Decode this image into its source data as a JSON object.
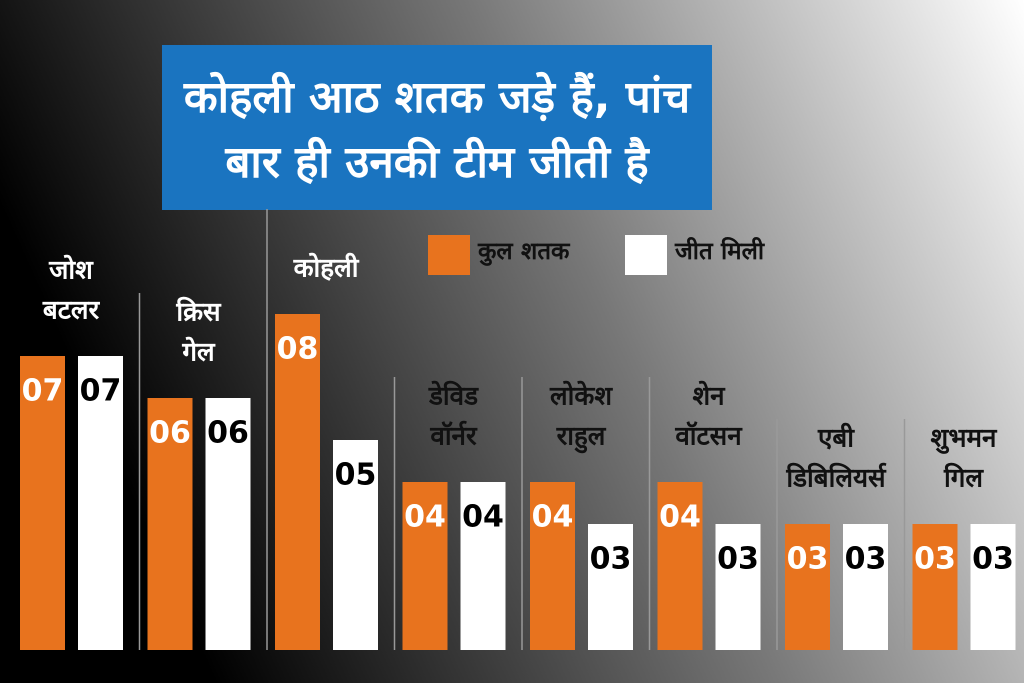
{
  "chart_data": {
    "type": "bar",
    "title": [
      "कोहली आठ शतक जड़े हैं, पांच",
      "बार ही उनकी टीम जीती है"
    ],
    "categories": [
      [
        "जोश",
        "बटलर"
      ],
      [
        "क्रिस",
        "गेल"
      ],
      [
        "कोहली"
      ],
      [
        "डेविड",
        "वॉर्नर"
      ],
      [
        "लोकेश",
        "राहुल"
      ],
      [
        "शेन",
        "वॉटसन"
      ],
      [
        "एबी",
        "डिबिलियर्स"
      ],
      [
        "शुभमन",
        "गिल"
      ]
    ],
    "series": [
      {
        "name": "कुल शतक",
        "color": "#e8731e",
        "values": [
          7,
          6,
          8,
          4,
          4,
          4,
          3,
          3
        ],
        "value_labels": [
          "07",
          "06",
          "08",
          "04",
          "04",
          "04",
          "03",
          "03"
        ]
      },
      {
        "name": "जीत मिली",
        "color": "#ffffff",
        "values": [
          7,
          6,
          5,
          4,
          3,
          3,
          3,
          3
        ],
        "value_labels": [
          "07",
          "06",
          "05",
          "04",
          "03",
          "03",
          "03",
          "03"
        ]
      }
    ]
  }
}
